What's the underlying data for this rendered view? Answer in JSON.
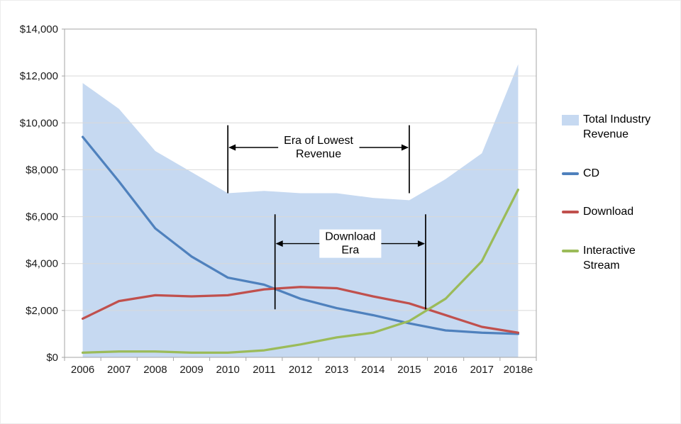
{
  "figure": {
    "background": "#ffffff"
  },
  "chart_data": {
    "type": "line",
    "title": "",
    "xlabel": "",
    "ylabel": "",
    "categories": [
      "2006",
      "2007",
      "2008",
      "2009",
      "2010",
      "2011",
      "2012",
      "2013",
      "2014",
      "2015",
      "2016",
      "2017",
      "2018e"
    ],
    "series": [
      {
        "name": "Total Industry Revenue",
        "type": "area",
        "color": "#c6d9f1",
        "values": [
          11700,
          10600,
          8800,
          7900,
          7000,
          7100,
          7000,
          7000,
          6800,
          6700,
          7600,
          8700,
          12500
        ]
      },
      {
        "name": "CD",
        "type": "line",
        "color": "#4f81bd",
        "values": [
          9400,
          7500,
          5500,
          4300,
          3400,
          3100,
          2500,
          2100,
          1800,
          1450,
          1150,
          1050,
          1000
        ]
      },
      {
        "name": "Download",
        "type": "line",
        "color": "#c0504d",
        "values": [
          1650,
          2400,
          2650,
          2600,
          2650,
          2900,
          3000,
          2950,
          2600,
          2300,
          1800,
          1300,
          1050
        ]
      },
      {
        "name": "Interactive Stream",
        "type": "line",
        "color": "#9bbb59",
        "values": [
          200,
          250,
          250,
          200,
          200,
          300,
          550,
          850,
          1050,
          1550,
          2500,
          4100,
          7150
        ]
      }
    ],
    "ylim": [
      0,
      14000
    ],
    "ytick_step": 2000,
    "ytick_prefix": "$",
    "grid": true,
    "gridline_color": "#d9d9d9",
    "axis_color": "#a6a6a6",
    "tick_label_color": "#1a1a1a",
    "legend_position": "right",
    "annotations": [
      {
        "label_lines": [
          "Era of Lowest",
          "Revenue"
        ],
        "x_start_index": 4,
        "x_end_index": 9,
        "line_y_min": 7000,
        "line_y_max": 9900,
        "arrow_y": 8950
      },
      {
        "label_lines": [
          "Download",
          "Era"
        ],
        "x_start_index": 5.3,
        "x_end_index": 9.45,
        "line_y_min": 2050,
        "line_y_max": 6100,
        "arrow_y": 4850
      }
    ]
  }
}
